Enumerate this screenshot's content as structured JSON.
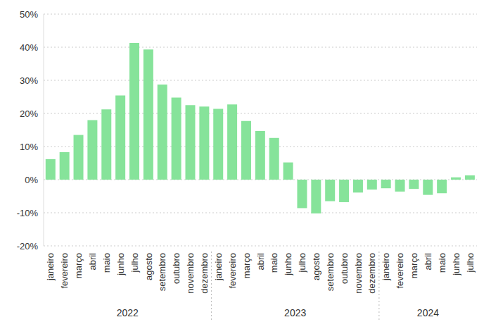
{
  "chart_data": {
    "type": "bar",
    "categories": [
      "janeiro",
      "fevereiro",
      "março",
      "abril",
      "maio",
      "junho",
      "julho",
      "agosto",
      "setembro",
      "outubro",
      "novembro",
      "dezembro",
      "janeiro",
      "fevereiro",
      "março",
      "abril",
      "maio",
      "junho",
      "julho",
      "agosto",
      "setembro",
      "outubro",
      "novembro",
      "dezembro",
      "janeiro",
      "fevereiro",
      "março",
      "abril",
      "maio",
      "junho",
      "julho"
    ],
    "years": [
      "2022",
      "2022",
      "2022",
      "2022",
      "2022",
      "2022",
      "2022",
      "2022",
      "2022",
      "2022",
      "2022",
      "2022",
      "2023",
      "2023",
      "2023",
      "2023",
      "2023",
      "2023",
      "2023",
      "2023",
      "2023",
      "2023",
      "2023",
      "2023",
      "2024",
      "2024",
      "2024",
      "2024",
      "2024",
      "2024",
      "2024"
    ],
    "values": [
      6.2,
      8.3,
      13.5,
      18.0,
      21.2,
      25.4,
      41.3,
      39.3,
      28.7,
      24.8,
      22.5,
      22.1,
      21.4,
      22.7,
      17.7,
      14.7,
      12.6,
      5.2,
      -8.6,
      -10.2,
      -6.5,
      -6.8,
      -3.9,
      -3.0,
      -2.6,
      -3.6,
      -2.8,
      -4.6,
      -4.1,
      0.7,
      1.3
    ],
    "color": "#86e39a",
    "ylim": [
      -20,
      50
    ],
    "yticks": [
      {
        "value": -20,
        "label": "-20%"
      },
      {
        "value": -10,
        "label": "-10%"
      },
      {
        "value": 0,
        "label": "0%"
      },
      {
        "value": 10,
        "label": "10%"
      },
      {
        "value": 20,
        "label": "20%"
      },
      {
        "value": 30,
        "label": "30%"
      },
      {
        "value": 40,
        "label": "40%"
      },
      {
        "value": 50,
        "label": "50%"
      }
    ],
    "grid": true
  }
}
